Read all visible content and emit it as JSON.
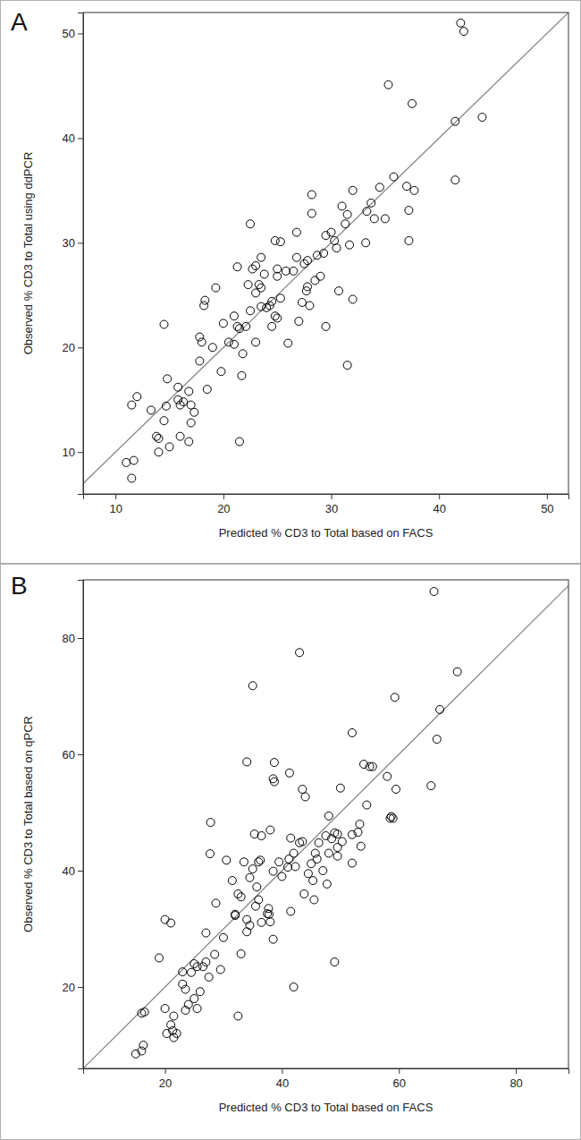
{
  "chart_data": [
    {
      "type": "scatter",
      "title": "A",
      "x_label": "Predicted % CD3 to Total based on FACS",
      "y_label": "Observed % CD3 to Total using ddPCR",
      "marker": "open-circle",
      "color": "#000000",
      "xlim": [
        7,
        52
      ],
      "ylim": [
        6,
        52
      ],
      "xticks": [
        10,
        20,
        30,
        40,
        50
      ],
      "yticks": [
        10,
        20,
        30,
        40,
        50
      ],
      "x": [
        11,
        11.5,
        11.7,
        11.5,
        12,
        13.3,
        13.8,
        14,
        14,
        14.5,
        14.5,
        14.7,
        14.8,
        15,
        15.8,
        15.8,
        16,
        16,
        16.3,
        16.8,
        16.8,
        17,
        17,
        17.3,
        17.8,
        17.8,
        18,
        18.2,
        18.3,
        18.5,
        19.3,
        19,
        19.8,
        20,
        20.5,
        21,
        21,
        21.3,
        21.3,
        21.5,
        21.5,
        21.7,
        21.8,
        22.1,
        22.3,
        22.5,
        22.5,
        22.7,
        23,
        23,
        23.3,
        23,
        23.5,
        23.5,
        23.5,
        23.8,
        24,
        24.3,
        24.5,
        24.8,
        24.5,
        24.8,
        25,
        25,
        25,
        25.3,
        25.3,
        25.8,
        26,
        26.5,
        26.8,
        26.8,
        27,
        27.3,
        27.5,
        27.7,
        27.8,
        27.8,
        28,
        28.2,
        28.2,
        28.5,
        28.7,
        29,
        29.3,
        29.5,
        29.5,
        30,
        30.3,
        30.5,
        30.7,
        31,
        31.3,
        31.5,
        31.5,
        31.7,
        32,
        32,
        33.2,
        33.3,
        33.7,
        34,
        34.5,
        35,
        35.3,
        35.8,
        37,
        37.2,
        37.2,
        37.5,
        37.7,
        41.5,
        41.5,
        42,
        42.3,
        44
      ],
      "values": [
        9,
        7.5,
        9.2,
        14.5,
        15.3,
        14,
        11.5,
        11.3,
        10,
        13,
        22.2,
        14.4,
        17,
        10.5,
        16.2,
        15,
        14.5,
        11.5,
        14.8,
        15.8,
        11,
        12.8,
        14.5,
        13.8,
        18.7,
        21,
        20.5,
        24,
        24.5,
        16,
        25.7,
        20,
        17.7,
        22.3,
        20.5,
        20.3,
        23,
        27.7,
        22,
        21.8,
        11,
        17.3,
        19.4,
        22,
        26,
        31.8,
        23.5,
        27.5,
        20.5,
        25.2,
        26,
        27.8,
        28.6,
        25.7,
        23.9,
        27,
        23.8,
        24,
        24.4,
        30.2,
        22,
        23,
        22.8,
        26.8,
        27.5,
        30.1,
        24.7,
        27.3,
        20.4,
        27.3,
        31,
        28.6,
        22.5,
        24.3,
        28,
        25.4,
        25.8,
        28.3,
        24,
        34.6,
        32.8,
        26.4,
        28.8,
        26.8,
        29,
        22,
        30.7,
        31,
        30.2,
        29.5,
        25.4,
        33.5,
        31.8,
        32.7,
        18.3,
        29.8,
        24.6,
        35,
        30,
        33,
        33.8,
        32.3,
        35.3,
        32.3,
        45.1,
        36.3,
        35.4,
        33.1,
        30.2,
        43.3,
        35,
        41.6,
        36,
        51,
        50.2,
        42
      ]
    },
    {
      "type": "scatter",
      "title": "B",
      "x_label": "Predicted % CD3 to Total based on FACS",
      "y_label": "Observed % CD3 to Total based on qPCR",
      "marker": "open-circle",
      "color": "#000000",
      "xlim": [
        6,
        89
      ],
      "ylim": [
        6,
        90
      ],
      "xticks": [
        20,
        40,
        60,
        80
      ],
      "yticks": [
        20,
        40,
        60,
        80
      ],
      "x": [
        15,
        16,
        16.3,
        16,
        16.5,
        19,
        20,
        20,
        20.3,
        21,
        21,
        21.3,
        21.5,
        21.5,
        22,
        23,
        23,
        23.5,
        23.5,
        24,
        24.5,
        25,
        25.5,
        25,
        25.5,
        26,
        26.5,
        27,
        27,
        27.5,
        27.7,
        27.8,
        28.5,
        28.7,
        29.5,
        30,
        30.5,
        31.5,
        32,
        32,
        32.5,
        32.5,
        33,
        33,
        33.5,
        34,
        34,
        34,
        34.5,
        34.5,
        35,
        35,
        35.3,
        35.5,
        35.7,
        36,
        36,
        36.3,
        36.5,
        36.5,
        37.5,
        37.7,
        37.8,
        38,
        38,
        38.5,
        38.5,
        38.5,
        38.7,
        38.7,
        39.5,
        40,
        41,
        41.2,
        41.3,
        41.5,
        41.5,
        42,
        42,
        42.3,
        43,
        43,
        43.5,
        43.8,
        43.5,
        44,
        44.5,
        45,
        45.3,
        45.5,
        45.7,
        46,
        46.3,
        47,
        47.5,
        47.7,
        48,
        48,
        48.5,
        49,
        49.5,
        49.5,
        49,
        49.5,
        50,
        50.3,
        52,
        52,
        52,
        53,
        53.5,
        53.3,
        54,
        54.5,
        55,
        55.5,
        58,
        58.5,
        58.7,
        59,
        59.3,
        59.5,
        65.5,
        66,
        66.5,
        67,
        70
      ],
      "values": [
        8.5,
        9,
        10,
        15.5,
        15.7,
        25,
        16.3,
        31.6,
        12,
        31,
        13.5,
        12.5,
        15,
        11.3,
        12,
        22.6,
        20.5,
        19.6,
        16,
        17,
        22.5,
        24,
        23.5,
        18,
        16.3,
        19.2,
        23.5,
        24.3,
        29.3,
        21.7,
        42.9,
        48.3,
        25.6,
        34.4,
        23,
        28.5,
        41.8,
        38.3,
        32.3,
        32.5,
        15,
        36,
        35.5,
        25.7,
        41.5,
        58.7,
        31.6,
        29.5,
        38.8,
        30.6,
        40.3,
        71.8,
        46.3,
        33.9,
        37.2,
        41.5,
        35,
        41.8,
        46,
        31.1,
        32.6,
        33.5,
        32.5,
        47,
        31.2,
        39.9,
        28.2,
        55.8,
        55.3,
        58.6,
        41.5,
        39,
        40.6,
        42,
        56.8,
        45.6,
        33,
        43,
        20,
        40.7,
        44.8,
        77.5,
        45,
        36,
        54,
        52.7,
        39.5,
        41.2,
        38.3,
        35,
        43,
        42,
        44.8,
        40,
        46,
        37.7,
        49.4,
        43,
        45.5,
        46.5,
        46.3,
        44,
        24.3,
        42.5,
        54.2,
        45,
        63.7,
        46.2,
        41.3,
        46.6,
        44.2,
        48,
        58.3,
        51.3,
        57.9,
        57.9,
        56.2,
        49,
        49.3,
        49,
        69.8,
        54,
        54.6,
        88,
        62.6,
        67.7,
        74.2
      ]
    }
  ]
}
